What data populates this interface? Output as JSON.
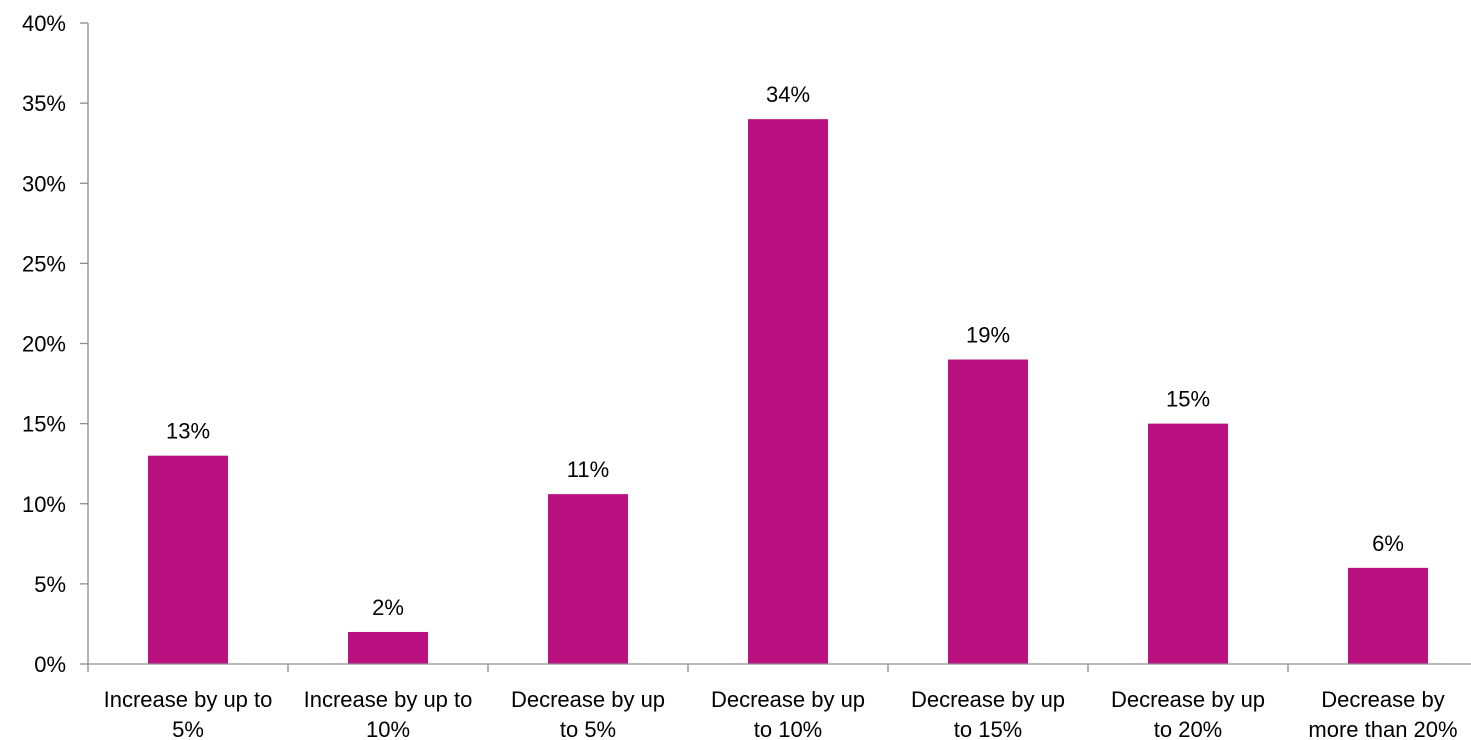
{
  "chart_data": {
    "type": "bar",
    "categories": [
      [
        "Increase by up to",
        "5%"
      ],
      [
        "Increase by up to",
        "10%"
      ],
      [
        "Decrease by up",
        "to 5%"
      ],
      [
        "Decrease by up",
        "to 10%"
      ],
      [
        "Decrease by up",
        "to 15%"
      ],
      [
        "Decrease by up",
        "to 20%"
      ],
      [
        "Decrease by",
        "more than 20%"
      ]
    ],
    "values": [
      13,
      2,
      10.6,
      34,
      19,
      15,
      6
    ],
    "data_labels": [
      "13%",
      "2%",
      "11%",
      "34%",
      "19%",
      "15%",
      "6%"
    ],
    "ylim": [
      0,
      40
    ],
    "yticks": [
      0,
      5,
      10,
      15,
      20,
      25,
      30,
      35,
      40
    ],
    "ytick_labels": [
      "0%",
      "5%",
      "10%",
      "15%",
      "20%",
      "25%",
      "30%",
      "35%",
      "40%"
    ],
    "title": "",
    "xlabel": "",
    "ylabel": "",
    "grid": false,
    "legend": "none",
    "bar_color": "#BA1080"
  }
}
